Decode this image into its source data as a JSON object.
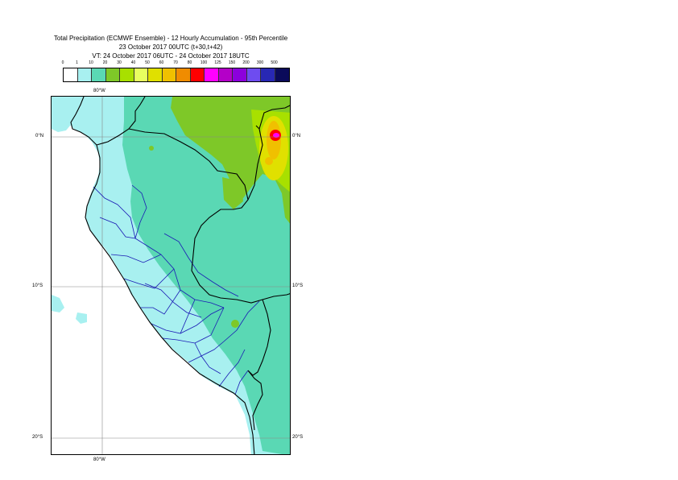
{
  "title": {
    "line1": "Total Precipitation (ECMWF Ensemble) - 12 Hourly Accumulation - 95th Percentile",
    "line2": "23 October 2017 00UTC (t+30,t+42)",
    "line3": "VT: 24 October 2017 06UTC - 24 October 2017 18UTC"
  },
  "legend": {
    "labels": [
      "0",
      "1",
      "10",
      "20",
      "30",
      "40",
      "50",
      "60",
      "70",
      "80",
      "100",
      "125",
      "150",
      "200",
      "300",
      "500"
    ],
    "colors": [
      "#ffffff",
      "#a8f0f0",
      "#5ad8b4",
      "#7ec828",
      "#a8e000",
      "#e8ff60",
      "#e0e000",
      "#f0c000",
      "#f08c00",
      "#ff0000",
      "#ff00ff",
      "#b400c8",
      "#8c00dc",
      "#6e4cf0",
      "#2828b4",
      "#0a0a5a"
    ]
  },
  "map": {
    "top_lon_label": "80°W",
    "bottom_lon_label": "80°W",
    "lat_labels_left": [
      "0°N",
      "10°S",
      "20°S"
    ],
    "lat_labels_right": [
      "0°N",
      "10°S",
      "20°S"
    ],
    "colors": {
      "ocean": "#ffffff",
      "light": "#a8f0f0",
      "teal": "#5ad8b4",
      "green": "#7ec828",
      "lime": "#a8e000",
      "yellow": "#e0e000",
      "orange": "#f0c000",
      "red": "#ff0000",
      "magenta": "#ff00ff",
      "coast": "#000000",
      "province": "#1a1ab4",
      "grid": "#888888"
    }
  }
}
